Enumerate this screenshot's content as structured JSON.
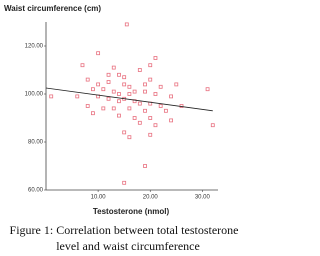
{
  "chart_data": {
    "type": "scatter",
    "y_axis_label": "Waist circumference (cm)",
    "x_axis_label": "Testosterone (nmol)",
    "caption": [
      "Figure 1: Correlation between total testosterone",
      "level and waist circumference"
    ],
    "color": "#e8707f",
    "fit_line": {
      "x": [
        0,
        32
      ],
      "y": [
        102.5,
        93
      ]
    },
    "xlim": [
      0,
      33
    ],
    "ylim": [
      60,
      130
    ],
    "xticks": [
      {
        "value": 10,
        "label": "10.00"
      },
      {
        "value": 20,
        "label": "20.00"
      },
      {
        "value": 30,
        "label": "30.00"
      }
    ],
    "yticks": [
      {
        "value": 60,
        "label": "60.00"
      },
      {
        "value": 80,
        "label": "80.00"
      },
      {
        "value": 100,
        "label": "100.00"
      },
      {
        "value": 120,
        "label": "120.00"
      }
    ],
    "x": [
      15.5,
      10,
      7,
      20,
      21,
      13,
      18,
      12,
      14,
      15,
      20,
      8,
      10,
      12,
      15,
      16,
      19,
      22,
      25,
      31,
      9,
      11,
      13,
      14,
      16,
      17,
      19,
      21,
      24,
      1,
      6,
      10,
      12,
      14,
      15,
      17,
      18,
      20,
      22,
      26,
      8,
      11,
      13,
      16,
      19,
      23,
      9,
      14,
      17,
      20,
      24,
      18,
      21,
      15,
      32,
      16,
      19,
      15,
      20
    ],
    "y": [
      129,
      117,
      112,
      112,
      115,
      111,
      110,
      108,
      108,
      107,
      106,
      106,
      104,
      105,
      104,
      103,
      104,
      103,
      104,
      102,
      102,
      102,
      101,
      100,
      100,
      101,
      101,
      100,
      99,
      99,
      99,
      99,
      98,
      97,
      98,
      97,
      96,
      96,
      95,
      95,
      95,
      94,
      94,
      94,
      93,
      93,
      92,
      91,
      90,
      90,
      89,
      88,
      87,
      84,
      87,
      82,
      70,
      63,
      83
    ]
  }
}
